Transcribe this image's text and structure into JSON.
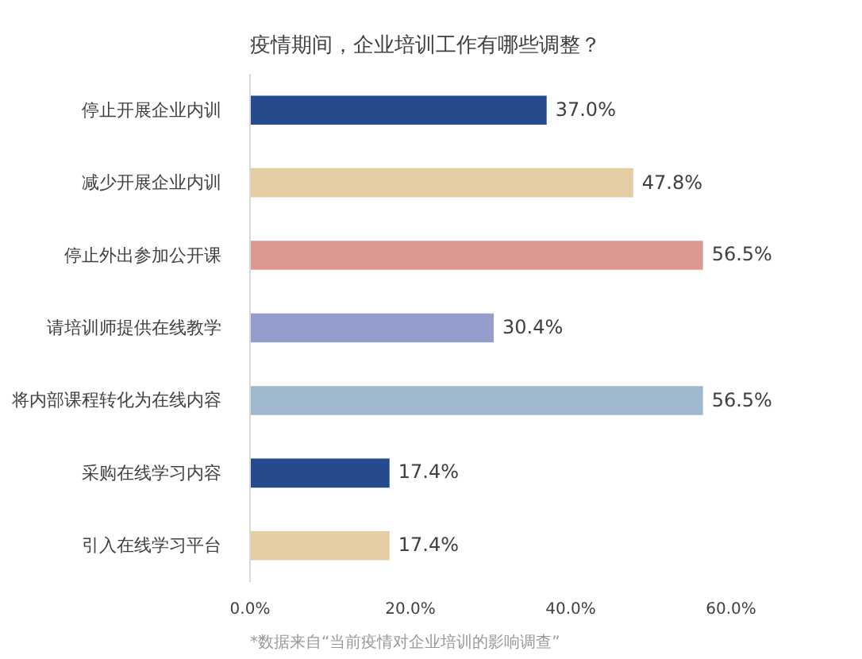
{
  "chart_data": {
    "type": "bar",
    "orientation": "horizontal",
    "title": "疫情期间，企业培训工作有哪些调整？",
    "categories": [
      "停止开展企业内训",
      "减少开展企业内训",
      "停止外出参加公开课",
      "请培训师提供在线教学",
      "将内部课程转化为在线内容",
      "采购在线学习内容",
      "引入在线学习平台"
    ],
    "values": [
      37.0,
      47.8,
      56.5,
      30.4,
      56.5,
      17.4,
      17.4
    ],
    "colors": [
      "#254b8c",
      "#e4cca3",
      "#de9893",
      "#959dcc",
      "#9fb8cd",
      "#254b8c",
      "#e4cca3"
    ],
    "value_labels": [
      "37.0%",
      "47.8%",
      "56.5%",
      "30.4%",
      "56.5%",
      "17.4%",
      "17.4%"
    ],
    "xlim": [
      0,
      60
    ],
    "xticks": [
      {
        "value": 0,
        "label": "0.0%"
      },
      {
        "value": 20,
        "label": "20.0%"
      },
      {
        "value": 40,
        "label": "40.0%"
      },
      {
        "value": 60,
        "label": "60.0%"
      }
    ],
    "annotations": [
      "*数据来自“当前疫情对企业培训的影响调查”"
    ]
  }
}
